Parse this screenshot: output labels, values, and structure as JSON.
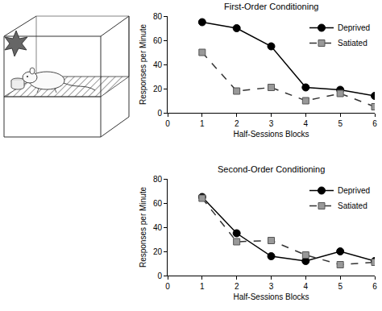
{
  "chart_data": [
    {
      "type": "line",
      "title": "First-Order Conditioning",
      "x_label": "Half-Sessions Blocks",
      "y_label": "Responses per Minute",
      "x": [
        1,
        2,
        3,
        4,
        5,
        6
      ],
      "series": [
        {
          "name": "Deprived",
          "color": "#000000",
          "marker": "circle",
          "line_style": "solid",
          "values": [
            75,
            70,
            55,
            21,
            19,
            14
          ]
        },
        {
          "name": "Satiated",
          "color": "#999999",
          "marker": "square",
          "line_style": "dash",
          "values": [
            50,
            18,
            21,
            10,
            16,
            5
          ]
        }
      ],
      "xlim": [
        0,
        6
      ],
      "xticks": [
        0,
        1,
        2,
        3,
        4,
        5,
        6
      ],
      "ylim": [
        0,
        80
      ],
      "yticks": [
        0,
        20,
        40,
        60,
        80
      ],
      "grid": false,
      "legend": "top right"
    },
    {
      "type": "line",
      "title": "Second-Order Conditioning",
      "x_label": "Half-Sessions Blocks",
      "y_label": "Responses per Minute",
      "x": [
        1,
        2,
        3,
        4,
        5,
        6
      ],
      "series": [
        {
          "name": "Deprived",
          "color": "#000000",
          "marker": "circle",
          "line_style": "solid",
          "values": [
            65,
            35,
            16,
            12,
            20,
            12
          ]
        },
        {
          "name": "Satiated",
          "color": "#999999",
          "marker": "square",
          "line_style": "dash",
          "values": [
            64,
            28,
            29,
            17,
            9,
            11
          ]
        }
      ],
      "xlim": [
        0,
        6
      ],
      "xticks": [
        0,
        1,
        2,
        3,
        4,
        5,
        6
      ],
      "ylim": [
        0,
        80
      ],
      "yticks": [
        0,
        20,
        40,
        60,
        80
      ],
      "grid": false,
      "legend": "top right"
    }
  ]
}
